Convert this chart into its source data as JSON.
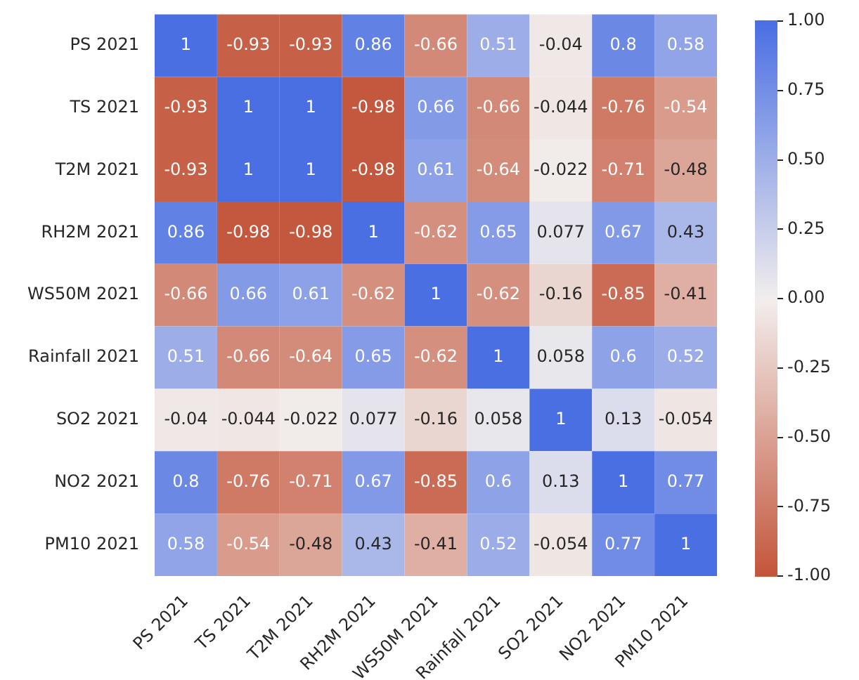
{
  "chart_data": {
    "type": "heatmap",
    "categories": [
      "PS 2021",
      "TS 2021",
      "T2M 2021",
      "RH2M 2021",
      "WS50M 2021",
      "Rainfall 2021",
      "SO2 2021",
      "NO2 2021",
      "PM10 2021"
    ],
    "y_categories": [
      "PS 2021",
      "TS 2021",
      "T2M 2021",
      "RH2M 2021",
      "WS50M 2021",
      "Rainfall 2021",
      "SO2 2021",
      "NO2 2021",
      "PM10 2021"
    ],
    "cells": [
      [
        1,
        -0.93,
        -0.93,
        0.86,
        -0.66,
        0.51,
        -0.04,
        0.8,
        0.58
      ],
      [
        -0.93,
        1,
        1,
        -0.98,
        0.66,
        -0.66,
        -0.044,
        -0.76,
        -0.54
      ],
      [
        -0.93,
        1,
        1,
        -0.98,
        0.61,
        -0.64,
        -0.022,
        -0.71,
        -0.48
      ],
      [
        0.86,
        -0.98,
        -0.98,
        1,
        -0.62,
        0.65,
        0.077,
        0.67,
        0.43
      ],
      [
        -0.66,
        0.66,
        0.61,
        -0.62,
        1,
        -0.62,
        -0.16,
        -0.85,
        -0.41
      ],
      [
        0.51,
        -0.66,
        -0.64,
        0.65,
        -0.62,
        1,
        0.058,
        0.6,
        0.52
      ],
      [
        -0.04,
        -0.044,
        -0.022,
        0.077,
        -0.16,
        0.058,
        1,
        0.13,
        -0.054
      ],
      [
        0.8,
        -0.76,
        -0.71,
        0.67,
        -0.85,
        0.6,
        0.13,
        1,
        0.77
      ],
      [
        0.58,
        -0.54,
        -0.48,
        0.43,
        -0.41,
        0.52,
        -0.054,
        0.77,
        1
      ]
    ],
    "data_labels": true,
    "clim": [
      -1,
      1
    ],
    "cticks": [
      {
        "value": -1,
        "label": "-1.00"
      },
      {
        "value": -0.75,
        "label": "-0.75"
      },
      {
        "value": -0.5,
        "label": "-0.50"
      },
      {
        "value": -0.25,
        "label": "-0.25"
      },
      {
        "value": 0,
        "label": "0.00"
      },
      {
        "value": 0.25,
        "label": "0.25"
      },
      {
        "value": 0.5,
        "label": "0.50"
      },
      {
        "value": 0.75,
        "label": "0.75"
      },
      {
        "value": 1,
        "label": "1.00"
      }
    ]
  }
}
